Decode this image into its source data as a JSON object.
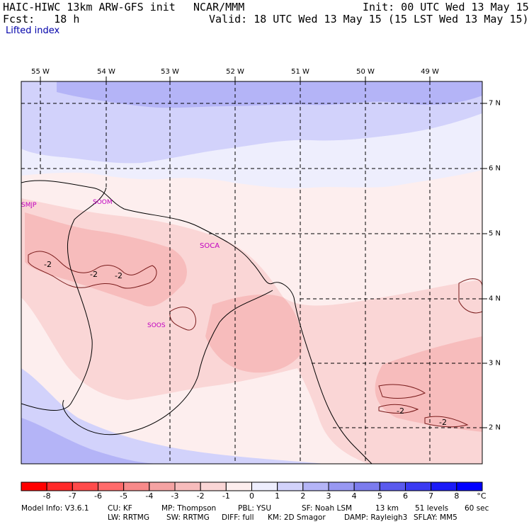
{
  "header": {
    "model": "HAIC-HIWC 13km ARW-GFS init",
    "org": "NCAR/MMM",
    "init": "Init: 00 UTC Wed 13 May 15",
    "fcst": "Fcst:   18 h",
    "valid": "Valid: 18 UTC Wed 13 May 15 (15 LST Wed 13 May 15)",
    "field": "Lifted index"
  },
  "axes": {
    "lon_labels": [
      "55 W",
      "54 W",
      "53 W",
      "52 W",
      "51 W",
      "50 W",
      "49 W"
    ],
    "lat_labels": [
      "7 N",
      "6 N",
      "5 N",
      "4 N",
      "3 N",
      "2 N"
    ]
  },
  "stations": [
    "SMJP",
    "SOOM",
    "SOCA",
    "SOOS"
  ],
  "contour_labels": [
    "-2",
    "-2",
    "-2",
    "-2",
    "-2"
  ],
  "colorbar": {
    "ticks": [
      "-8",
      "-7",
      "-6",
      "-5",
      "-4",
      "-3",
      "-2",
      "-1",
      "0",
      "1",
      "2",
      "3",
      "4",
      "5",
      "6",
      "7",
      "8"
    ],
    "unit": "°C",
    "colors": [
      "#ff0000",
      "#ff2a2a",
      "#ff4b4b",
      "#ff6b6b",
      "#f88a8a",
      "#f5a3a3",
      "#f7bcbc",
      "#fad6d6",
      "#fdeeee",
      "#eeeefd",
      "#d2d2fb",
      "#b4b4f7",
      "#9898f2",
      "#7c7cee",
      "#5a5aee",
      "#3a3af2",
      "#1a1af8",
      "#0000ff"
    ]
  },
  "footer": {
    "line1_a": "Model Info: V3.6.1",
    "line1_b": "CU: KF",
    "line1_c": "MP: Thompson",
    "line1_d": "PBL: YSU",
    "line1_e": "SF: Noah LSM",
    "line1_f": "13 km",
    "line1_g": "51 levels",
    "line1_h": "60 sec",
    "line2_a": "LW: RRTMG",
    "line2_b": "SW: RRTMG",
    "line2_c": "DIFF: full",
    "line2_d": "KM: 2D Smagor",
    "line2_e": "DAMP: Rayleigh3",
    "line2_f": "SFLAY: MM5"
  }
}
